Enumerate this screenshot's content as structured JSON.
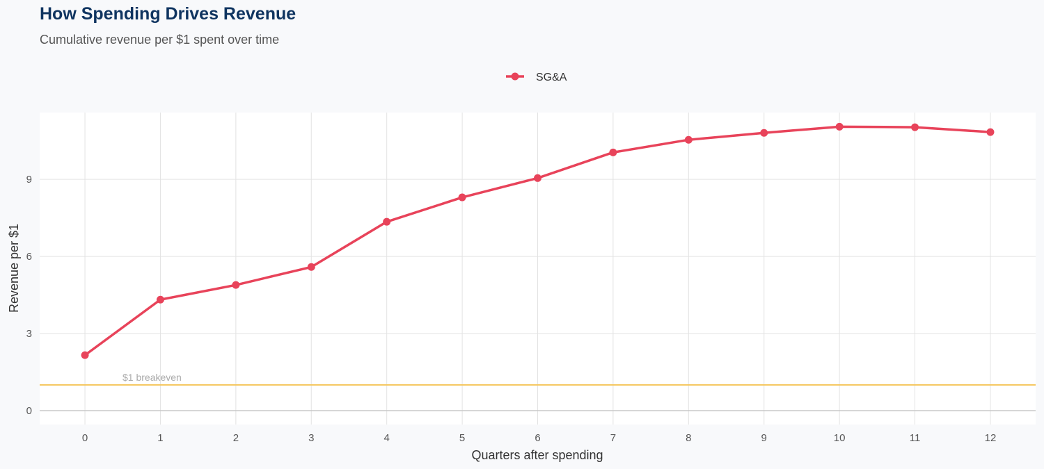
{
  "chart_data": {
    "type": "line",
    "title": "How Spending Drives Revenue",
    "subtitle": "Cumulative revenue per $1 spent over time",
    "xlabel": "Quarters after spending",
    "ylabel": "Revenue per $1",
    "x": [
      0,
      1,
      2,
      3,
      4,
      5,
      6,
      7,
      8,
      9,
      10,
      11,
      12
    ],
    "series": [
      {
        "name": "SG&A",
        "color": "#e8435a",
        "values": [
          2.16,
          4.32,
          4.89,
          5.59,
          7.35,
          8.3,
          9.05,
          10.05,
          10.54,
          10.81,
          11.05,
          11.03,
          10.84
        ]
      }
    ],
    "xticks": [
      0,
      1,
      2,
      3,
      4,
      5,
      6,
      7,
      8,
      9,
      10,
      11,
      12
    ],
    "yticks": [
      0,
      3,
      6,
      9
    ],
    "xlim": [
      -0.6,
      12.6
    ],
    "ylim": [
      -0.54,
      11.6
    ],
    "grid": true,
    "legend": "top-center",
    "reference_line": {
      "y": 1,
      "label": "$1 breakeven",
      "color": "#f5c862"
    }
  }
}
